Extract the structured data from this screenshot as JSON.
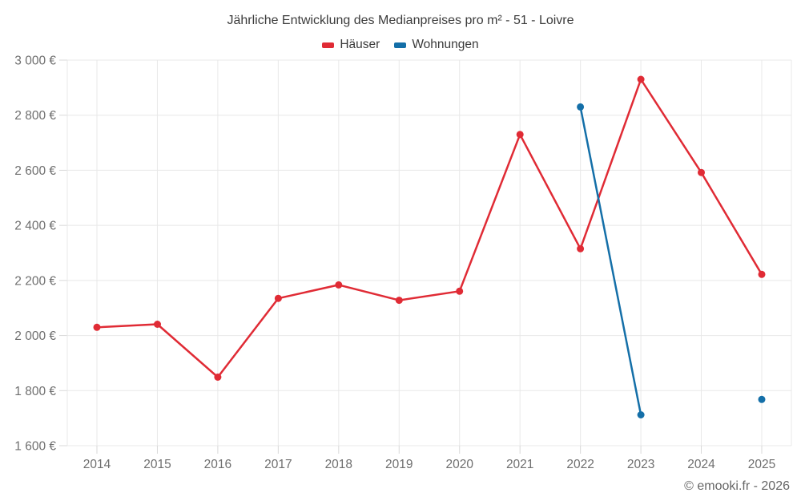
{
  "title": "Jährliche Entwicklung des Medianpreises pro m² - 51 - Loivre",
  "footer": "© emooki.fr - 2026",
  "chart_data": {
    "type": "line",
    "x": [
      2014,
      2015,
      2016,
      2017,
      2018,
      2019,
      2020,
      2021,
      2022,
      2023,
      2024,
      2025
    ],
    "series": [
      {
        "name": "Häuser",
        "color": "#e02b35",
        "values": [
          2030,
          2041,
          1849,
          2135,
          2184,
          2128,
          2161,
          2730,
          2315,
          2930,
          2592,
          2222
        ]
      },
      {
        "name": "Wohnungen",
        "color": "#146fa8",
        "values": [
          null,
          null,
          null,
          null,
          null,
          null,
          null,
          null,
          2830,
          1712,
          null,
          1768
        ]
      }
    ],
    "title": "Jährliche Entwicklung des Medianpreises pro m² - 51 - Loivre",
    "xlabel": "",
    "ylabel": "",
    "ylim": [
      1600,
      3000
    ],
    "y_ticks": [
      3000,
      2800,
      2600,
      2400,
      2200,
      2000,
      1800,
      1600
    ],
    "y_tick_labels": [
      "3 000 €",
      "2 800 €",
      "2 600 €",
      "2 400 €",
      "2 200 €",
      "2 000 €",
      "1 800 €",
      "1 600 €"
    ],
    "x_tick_labels": [
      "2014",
      "2015",
      "2016",
      "2017",
      "2018",
      "2019",
      "2020",
      "2021",
      "2022",
      "2023",
      "2024",
      "2025"
    ],
    "grid": true,
    "legend_position": "top"
  }
}
